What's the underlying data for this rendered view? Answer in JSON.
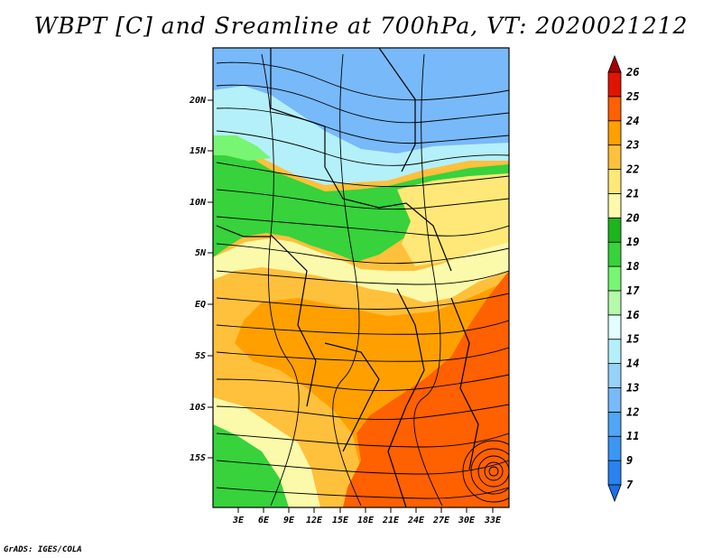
{
  "title": "WBPT [C] and Sreamline at 700hPa, VT: 2020021212",
  "footer": "GrADS: IGES/COLA",
  "map": {
    "lat_labels": [
      "20N",
      "15N",
      "10N",
      "5N",
      "EQ",
      "5S",
      "10S",
      "15S"
    ],
    "lon_labels": [
      "3E",
      "6E",
      "9E",
      "12E",
      "15E",
      "18E",
      "21E",
      "24E",
      "27E",
      "30E",
      "33E"
    ]
  },
  "colorbar": {
    "levels": [
      "7",
      "9",
      "11",
      "12",
      "13",
      "14",
      "15",
      "16",
      "17",
      "18",
      "19",
      "20",
      "21",
      "22",
      "23",
      "24",
      "25",
      "26"
    ],
    "colors": [
      "#1e6ee6",
      "#2882f0",
      "#3c96f5",
      "#50a5f5",
      "#78b9fa",
      "#96d2fa",
      "#b4f0fa",
      "#e1ffff",
      "#b4faaa",
      "#78f573",
      "#37d23c",
      "#1eb41e",
      "#fafaaa",
      "#ffe878",
      "#ffc03c",
      "#ffa000",
      "#ff6000",
      "#e11400",
      "#a50000"
    ]
  },
  "colors": {
    "blue": "#78b9fa",
    "lightblue": "#b4f0fa",
    "green": "#37d23c",
    "lightgreen": "#78f573",
    "yellow": "#fafaaa",
    "lightorange": "#ffe878",
    "orange": "#ffc03c",
    "darkorange": "#ffa000",
    "red": "#ff6000"
  }
}
